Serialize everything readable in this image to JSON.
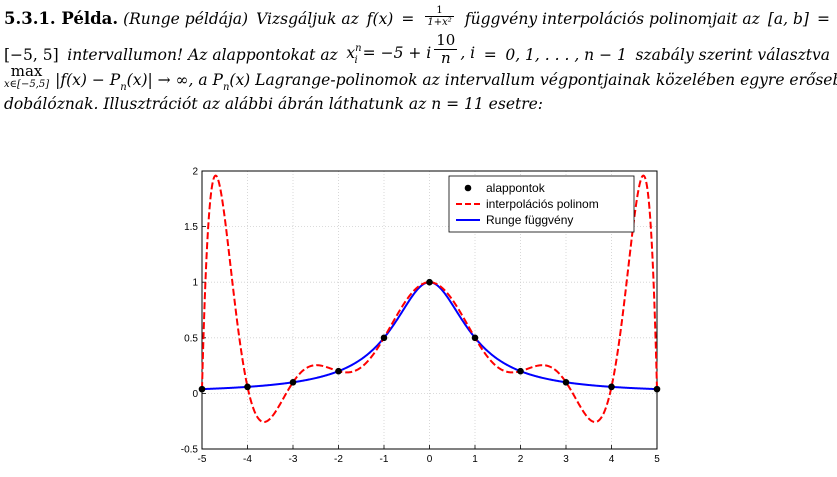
{
  "example": {
    "label": "5.3.1. Példa.",
    "title": "(Runge példája)",
    "l1_a": "Vizsgáljuk az",
    "l1_fx": "f(x)",
    "l1_eq": "=",
    "l1_num": "1",
    "l1_den": "1+x²",
    "l1_b": "függvény interpolációs polinomjait az",
    "l1_ab": "[a, b]",
    "l1_eq2": "=",
    "l2_interval": "[−5, 5]",
    "l2_a": "intervallumon! Az alappontokat az",
    "l2_x": "x",
    "l2_sup": "n",
    "l2_sub": "i",
    "l2_eq": "= −5 + i",
    "l2_num": "10",
    "l2_den": "n",
    "l2_i": ", i",
    "l2_eq2": "=",
    "l2_range": "0, 1, . . . , n − 1",
    "l2_b": "szabály szerint választva",
    "l3_max": "max",
    "l3_lim": "x∈[−5,5]",
    "l3_expr": "|f(x) − P",
    "l3_n": "n",
    "l3_expr2": "(x)| → ∞, a P",
    "l3_n2": "n",
    "l3_rest": "(x) Lagrange-polinomok az intervallum végpontjainak közelében egyre erősebben",
    "l4": "dobálóznak. Illusztrációt az alábbi ábrán láthatunk az n = 11 esetre:"
  },
  "chart_data": {
    "type": "line",
    "title": "",
    "xlabel": "",
    "ylabel": "",
    "xlim": [
      -5,
      5
    ],
    "ylim": [
      -0.5,
      2
    ],
    "x_ticks": [
      "-5",
      "-4",
      "-3",
      "-2",
      "-1",
      "0",
      "1",
      "2",
      "3",
      "4",
      "5"
    ],
    "y_ticks": [
      "-0.5",
      "0",
      "0.5",
      "1",
      "1.5",
      "2"
    ],
    "grid": true,
    "legend_position": "top-right",
    "series": [
      {
        "name": "alappontok",
        "style": "markers",
        "color": "#000000",
        "x": [
          -5,
          -4,
          -3,
          -2,
          -1,
          0,
          1,
          2,
          3,
          4,
          5
        ],
        "y": [
          0.0385,
          0.0588,
          0.1,
          0.2,
          0.5,
          1.0,
          0.5,
          0.2,
          0.1,
          0.0588,
          0.0385
        ]
      },
      {
        "name": "interpolációs polinom",
        "style": "dashed",
        "color": "#ff0000",
        "function": "lagrange_interpolant_n11"
      },
      {
        "name": "Runge függvény",
        "style": "solid",
        "color": "#0000ff",
        "function": "1/(1+x^2)"
      }
    ]
  }
}
